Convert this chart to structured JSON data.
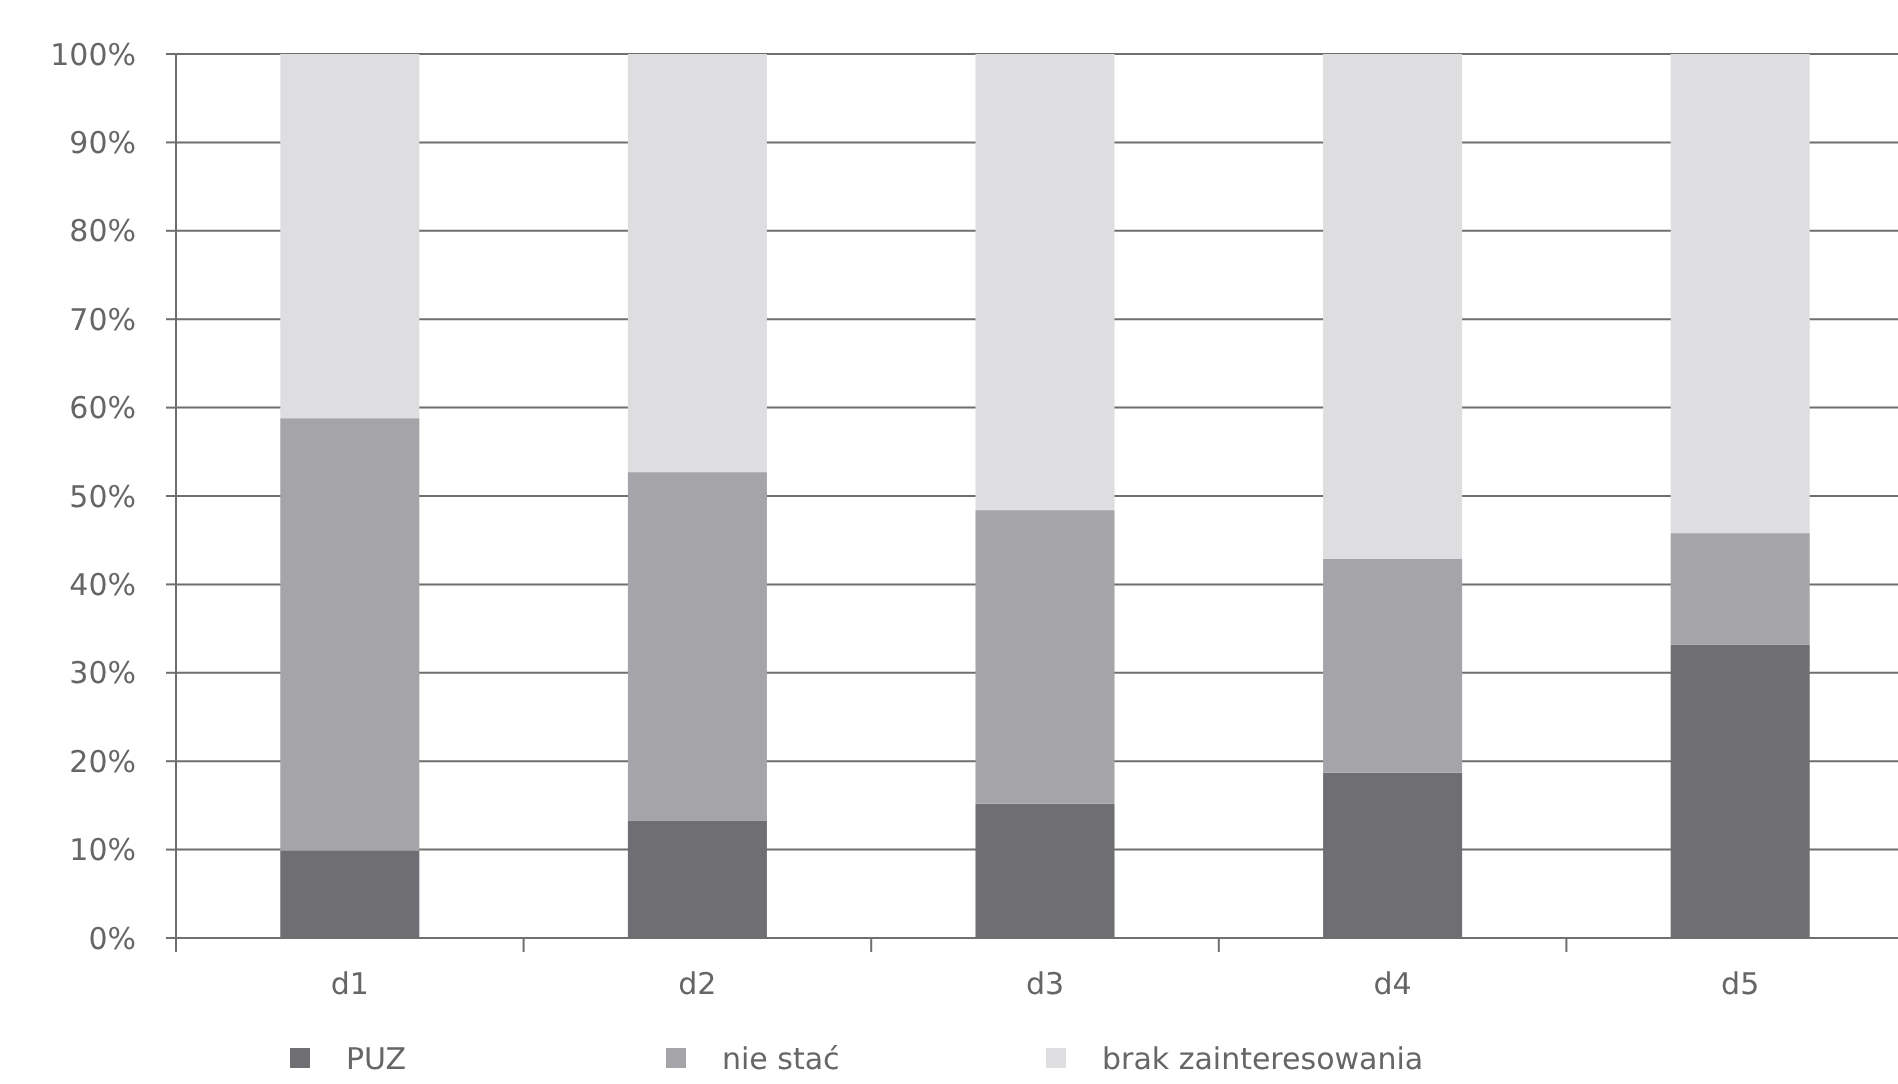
{
  "chart_data": {
    "type": "bar",
    "stacked": true,
    "categories": [
      "d1",
      "d2",
      "d3",
      "d4",
      "d5"
    ],
    "series": [
      {
        "name": "PUZ",
        "color": "#6f6e73",
        "values": [
          9.9,
          13.3,
          15.2,
          18.7,
          33.2
        ]
      },
      {
        "name": "nie stać",
        "color": "#a5a4a9",
        "values": [
          48.9,
          39.4,
          33.2,
          24.2,
          12.6
        ]
      },
      {
        "name": "brak zainteresowania",
        "color": "#dedee0",
        "values": [
          41.2,
          47.3,
          51.6,
          57.1,
          54.2
        ]
      }
    ],
    "ylim": [
      0,
      100
    ],
    "yticks": [
      {
        "value": 0,
        "label": "0%"
      },
      {
        "value": 10,
        "label": "10%"
      },
      {
        "value": 20,
        "label": "20%"
      },
      {
        "value": 30,
        "label": "30%"
      },
      {
        "value": 40,
        "label": "40%"
      },
      {
        "value": 50,
        "label": "50%"
      },
      {
        "value": 60,
        "label": "60%"
      },
      {
        "value": 70,
        "label": "70%"
      },
      {
        "value": 80,
        "label": "80%"
      },
      {
        "value": 90,
        "label": "90%"
      },
      {
        "value": 100,
        "label": "100%"
      }
    ],
    "grid": "y",
    "legend": "bottom"
  }
}
